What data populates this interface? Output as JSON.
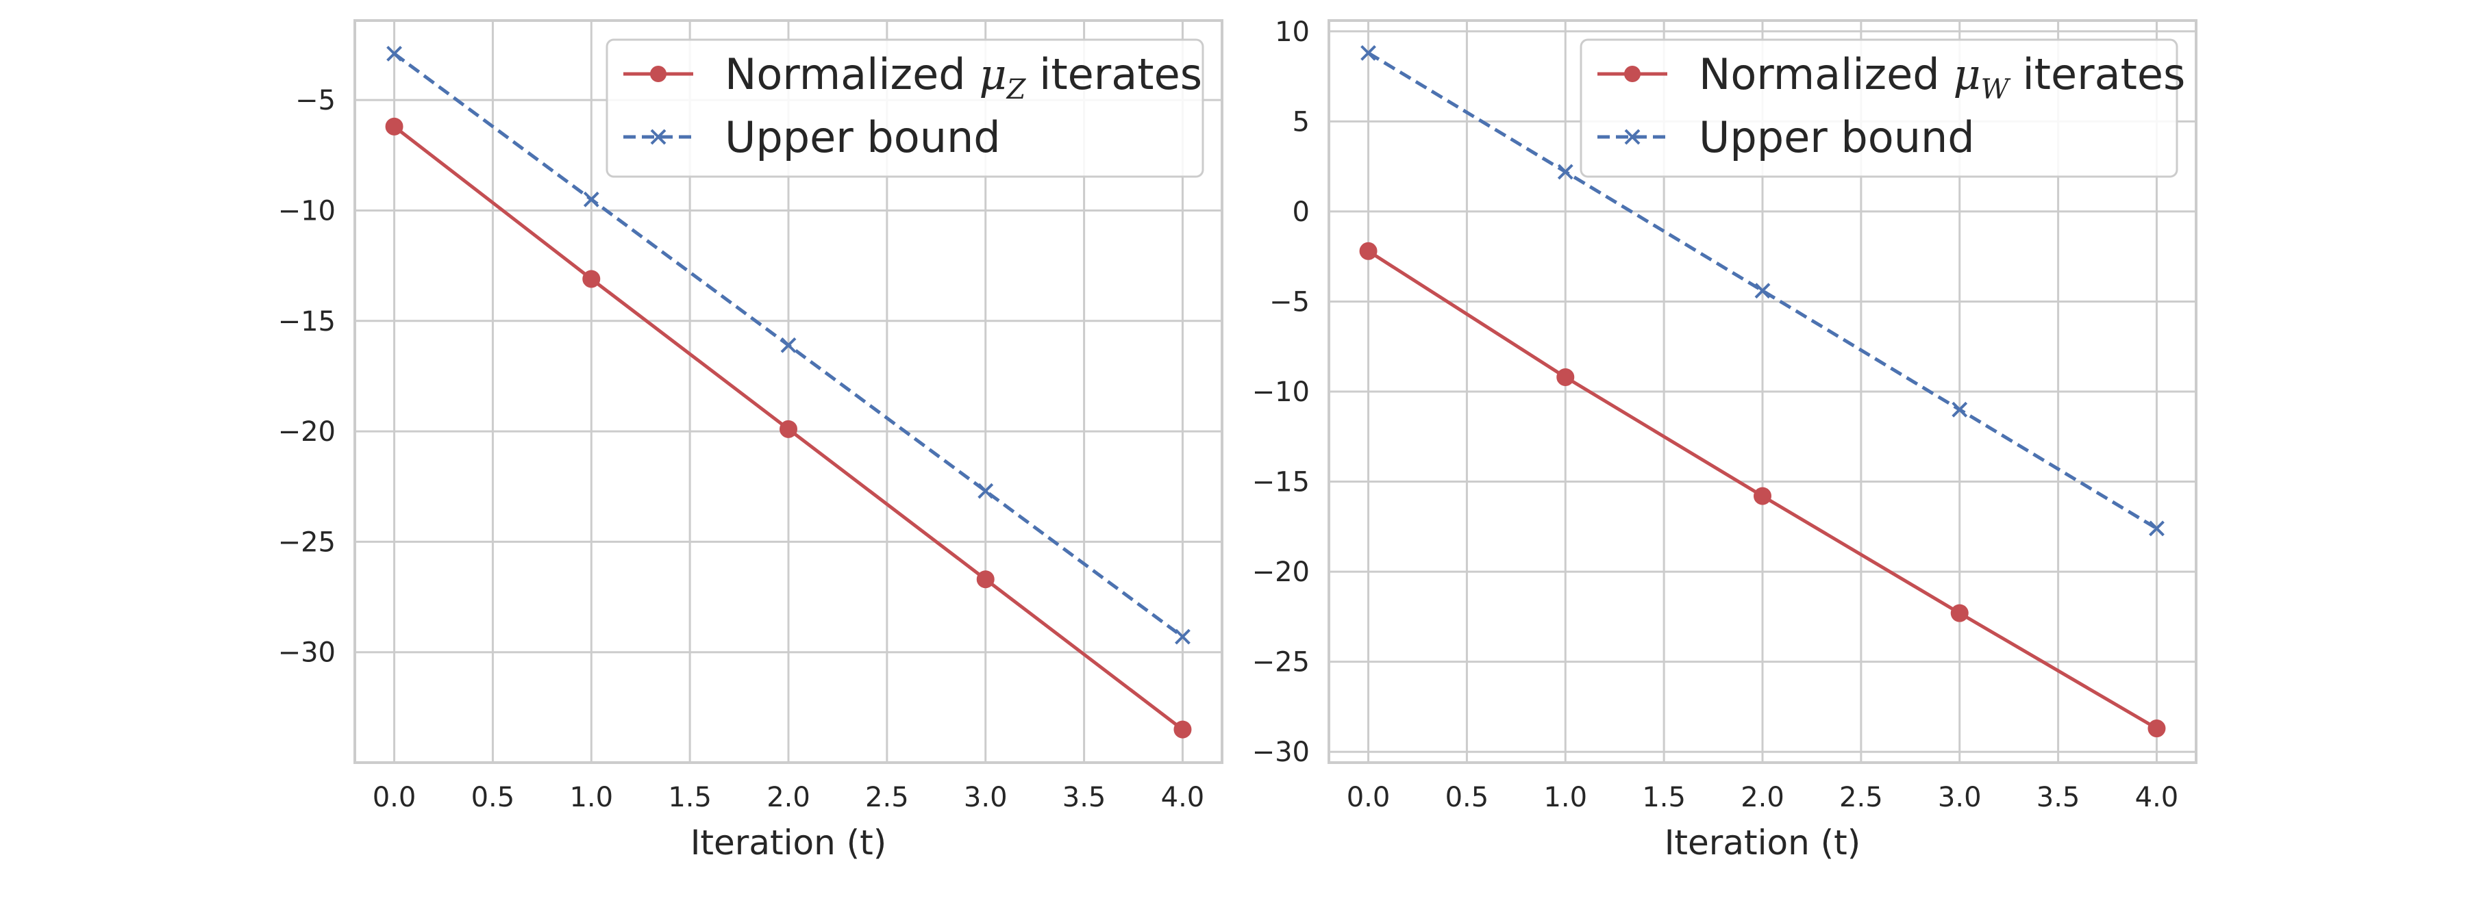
{
  "chart_data": [
    {
      "type": "line",
      "title": "",
      "xlabel": "Iteration (t)",
      "ylabel": "",
      "x": [
        0,
        1,
        2,
        3,
        4
      ],
      "xlim": [
        -0.2,
        4.2
      ],
      "ylim": [
        -35,
        -1.4
      ],
      "xticks": [
        0,
        0.5,
        1,
        1.5,
        2,
        2.5,
        3,
        3.5,
        4
      ],
      "xtick_labels": [
        "0.0",
        "0.5",
        "1.0",
        "1.5",
        "2.0",
        "2.5",
        "3.0",
        "3.5",
        "4.0"
      ],
      "yticks": [
        -5,
        -10,
        -15,
        -20,
        -25,
        -30
      ],
      "ytick_labels": [
        "−5",
        "−10",
        "−15",
        "−20",
        "−25",
        "−30"
      ],
      "grid": true,
      "legend_position": "top-right",
      "series": [
        {
          "name": "Normalized μZ iterates",
          "legend_prefix": "Normalized ",
          "legend_symbol": "μ",
          "legend_subscript": "Z",
          "legend_suffix": " iterates",
          "values": [
            -6.2,
            -13.1,
            -19.9,
            -26.7,
            -33.5
          ],
          "color": "#c44e52",
          "linestyle": "solid",
          "marker": "circle"
        },
        {
          "name": "Upper bound",
          "values": [
            -2.9,
            -9.5,
            -16.1,
            -22.7,
            -29.3
          ],
          "color": "#4c72b0",
          "linestyle": "dashed",
          "marker": "x"
        }
      ]
    },
    {
      "type": "line",
      "title": "",
      "xlabel": "Iteration (t)",
      "ylabel": "",
      "x": [
        0,
        1,
        2,
        3,
        4
      ],
      "xlim": [
        -0.2,
        4.2
      ],
      "ylim": [
        -30.6,
        10.6
      ],
      "xticks": [
        0,
        0.5,
        1,
        1.5,
        2,
        2.5,
        3,
        3.5,
        4
      ],
      "xtick_labels": [
        "0.0",
        "0.5",
        "1.0",
        "1.5",
        "2.0",
        "2.5",
        "3.0",
        "3.5",
        "4.0"
      ],
      "yticks": [
        10,
        5,
        0,
        -5,
        -10,
        -15,
        -20,
        -25,
        -30
      ],
      "ytick_labels": [
        "10",
        "5",
        "0",
        "−5",
        "−10",
        "−15",
        "−20",
        "−25",
        "−30"
      ],
      "grid": true,
      "legend_position": "top-right",
      "series": [
        {
          "name": "Normalized μW iterates",
          "legend_prefix": "Normalized ",
          "legend_symbol": "μ",
          "legend_subscript": "W",
          "legend_suffix": " iterates",
          "values": [
            -2.2,
            -9.2,
            -15.8,
            -22.3,
            -28.7
          ],
          "color": "#c44e52",
          "linestyle": "solid",
          "marker": "circle"
        },
        {
          "name": "Upper bound",
          "values": [
            8.8,
            2.2,
            -4.4,
            -11.0,
            -17.6
          ],
          "color": "#4c72b0",
          "linestyle": "dashed",
          "marker": "x"
        }
      ]
    }
  ]
}
